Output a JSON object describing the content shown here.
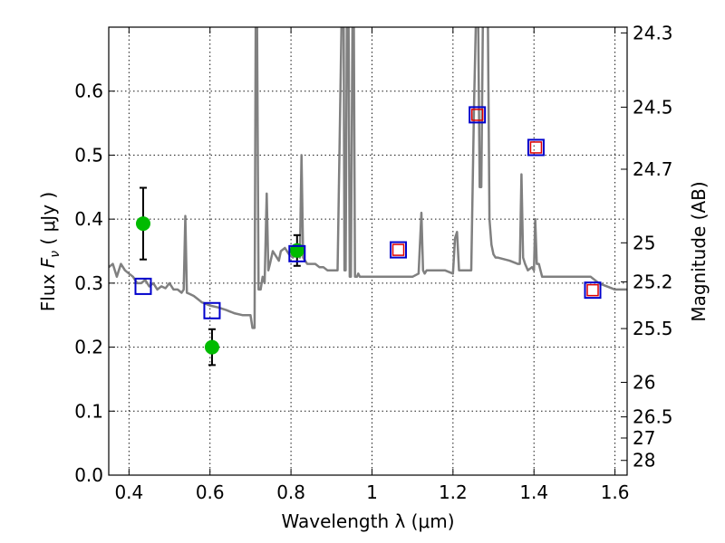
{
  "chart_data": {
    "type": "scatter",
    "xlabel": "Wavelength  λ (μm)",
    "ylabel": "Flux  F_ν  ( μJy )",
    "ylabel_parts": {
      "pre": "Flux  ",
      "var": "F",
      "sub": "ν",
      "post": "  ( μJy )"
    },
    "y2label": "Magnitude (AB)",
    "xlim": [
      0.35,
      1.63
    ],
    "ylim": [
      0.0,
      0.7
    ],
    "grid": true,
    "x_ticks": [
      0.4,
      0.6,
      0.8,
      1.0,
      1.2,
      1.4,
      1.6
    ],
    "x_tick_labels": [
      "0.4",
      "0.6",
      "0.8",
      "1",
      "1.2",
      "1.4",
      "1.6"
    ],
    "y_ticks": [
      0.0,
      0.1,
      0.2,
      0.3,
      0.4,
      0.5,
      0.6
    ],
    "y_tick_labels": [
      "0.0",
      "0.1",
      "0.2",
      "0.3",
      "0.4",
      "0.5",
      "0.6"
    ],
    "y2_ticks": [
      {
        "label": "24.3",
        "flux": 0.691
      },
      {
        "label": "24.5",
        "flux": 0.575
      },
      {
        "label": "24.7",
        "flux": 0.478
      },
      {
        "label": "25",
        "flux": 0.363
      },
      {
        "label": "25.2",
        "flux": 0.302
      },
      {
        "label": "25.5",
        "flux": 0.229
      },
      {
        "label": "26",
        "flux": 0.145
      },
      {
        "label": "26.5",
        "flux": 0.091
      },
      {
        "label": "27",
        "flux": 0.058
      },
      {
        "label": "28",
        "flux": 0.023
      }
    ],
    "series": [
      {
        "kind": "line",
        "color": "#808080",
        "x": [
          0.35,
          0.36,
          0.37,
          0.38,
          0.39,
          0.4,
          0.41,
          0.42,
          0.43,
          0.44,
          0.45,
          0.46,
          0.47,
          0.48,
          0.49,
          0.5,
          0.51,
          0.52,
          0.53,
          0.535,
          0.539,
          0.543,
          0.55,
          0.56,
          0.57,
          0.58,
          0.6,
          0.62,
          0.64,
          0.66,
          0.68,
          0.7,
          0.705,
          0.71,
          0.713,
          0.716,
          0.72,
          0.725,
          0.73,
          0.735,
          0.74,
          0.744,
          0.748,
          0.755,
          0.765,
          0.77,
          0.775,
          0.785,
          0.795,
          0.805,
          0.815,
          0.822,
          0.826,
          0.83,
          0.835,
          0.84,
          0.85,
          0.86,
          0.87,
          0.88,
          0.89,
          0.9,
          0.915,
          0.925,
          0.93,
          0.932,
          0.935,
          0.938,
          0.942,
          0.945,
          0.948,
          0.952,
          0.955,
          0.958,
          0.96,
          0.963,
          0.966,
          0.97,
          0.98,
          1.0,
          1.02,
          1.04,
          1.06,
          1.08,
          1.1,
          1.115,
          1.122,
          1.126,
          1.13,
          1.135,
          1.15,
          1.18,
          1.2,
          1.205,
          1.21,
          1.215,
          1.222,
          1.23,
          1.245,
          1.252,
          1.257,
          1.262,
          1.266,
          1.27,
          1.274,
          1.278,
          1.282,
          1.286,
          1.29,
          1.295,
          1.3,
          1.305,
          1.31,
          1.34,
          1.36,
          1.365,
          1.369,
          1.373,
          1.378,
          1.385,
          1.395,
          1.4,
          1.403,
          1.407,
          1.412,
          1.42,
          1.45,
          1.48,
          1.51,
          1.54,
          1.56,
          1.58,
          1.6,
          1.63
        ],
        "y": [
          0.325,
          0.33,
          0.31,
          0.33,
          0.32,
          0.315,
          0.31,
          0.3,
          0.3,
          0.305,
          0.295,
          0.3,
          0.29,
          0.295,
          0.292,
          0.3,
          0.29,
          0.29,
          0.285,
          0.29,
          0.405,
          0.285,
          0.283,
          0.28,
          0.275,
          0.27,
          0.265,
          0.262,
          0.258,
          0.253,
          0.25,
          0.25,
          0.23,
          0.23,
          0.72,
          0.72,
          0.29,
          0.29,
          0.31,
          0.3,
          0.44,
          0.32,
          0.33,
          0.35,
          0.34,
          0.335,
          0.35,
          0.355,
          0.345,
          0.34,
          0.35,
          0.34,
          0.5,
          0.34,
          0.335,
          0.33,
          0.33,
          0.33,
          0.325,
          0.325,
          0.32,
          0.32,
          0.32,
          0.72,
          0.72,
          0.32,
          0.32,
          0.72,
          0.72,
          0.31,
          0.31,
          0.72,
          0.72,
          0.31,
          0.31,
          0.31,
          0.315,
          0.31,
          0.31,
          0.31,
          0.31,
          0.31,
          0.31,
          0.31,
          0.31,
          0.315,
          0.41,
          0.32,
          0.315,
          0.32,
          0.32,
          0.32,
          0.315,
          0.37,
          0.38,
          0.32,
          0.32,
          0.32,
          0.32,
          0.58,
          0.72,
          0.72,
          0.45,
          0.45,
          0.72,
          0.72,
          0.72,
          0.72,
          0.4,
          0.36,
          0.345,
          0.34,
          0.34,
          0.335,
          0.33,
          0.33,
          0.47,
          0.34,
          0.33,
          0.32,
          0.325,
          0.32,
          0.4,
          0.33,
          0.33,
          0.31,
          0.31,
          0.31,
          0.31,
          0.31,
          0.3,
          0.295,
          0.29,
          0.29
        ]
      },
      {
        "kind": "points",
        "marker": "circle",
        "color": "#00bb00",
        "x": [
          0.435,
          0.605,
          0.815
        ],
        "y": [
          0.393,
          0.2,
          0.351
        ],
        "yerr": [
          0.056,
          0.028,
          0.024
        ]
      },
      {
        "kind": "points",
        "marker": "square-open",
        "color": "#0000cc",
        "x": [
          0.435,
          0.605,
          0.815,
          1.065,
          1.26,
          1.405,
          1.545
        ],
        "y": [
          0.295,
          0.257,
          0.346,
          0.352,
          0.563,
          0.512,
          0.289
        ]
      },
      {
        "kind": "points",
        "marker": "square-small",
        "color": "#dd0000",
        "x": [
          1.065,
          1.26,
          1.405,
          1.545
        ],
        "y": [
          0.352,
          0.563,
          0.512,
          0.289
        ]
      }
    ]
  }
}
